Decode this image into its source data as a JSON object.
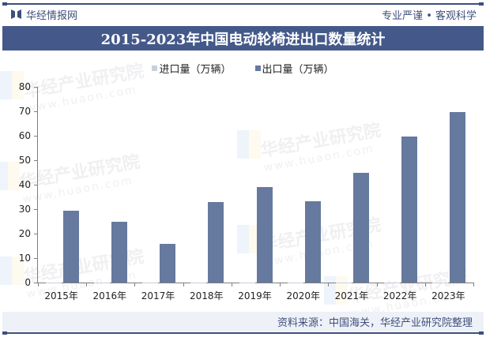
{
  "header": {
    "brand": "华经情报网",
    "slogan": "专业严谨 • 客观科学",
    "title": "2015-2023年中国电动轮椅进出口数量统计"
  },
  "legend": [
    {
      "label": "进口量（万辆）",
      "color": "#c9cfdd"
    },
    {
      "label": "出口量（万辆）",
      "color": "#66799e"
    }
  ],
  "footer": {
    "source": "资料来源：中国海关，华经产业研究院整理"
  },
  "watermark": {
    "text": "华经产业研究院",
    "url": "www.huaon.com"
  },
  "chart_data": {
    "type": "bar",
    "title": "2015-2023年中国电动轮椅进出口数量统计",
    "xlabel": "",
    "ylabel": "",
    "ylim": [
      0,
      80
    ],
    "yticks": [
      0,
      10,
      20,
      30,
      40,
      50,
      60,
      70,
      80
    ],
    "grid": false,
    "legend_position": "top",
    "categories": [
      "2015年",
      "2016年",
      "2017年",
      "2018年",
      "2019年",
      "2020年",
      "2021年",
      "2022年",
      "2023年"
    ],
    "series": [
      {
        "name": "进口量（万辆）",
        "color": "#c9cfdd",
        "values": [
          0.1,
          0.1,
          0.1,
          0.1,
          0.1,
          0.1,
          0.1,
          0.1,
          0.1
        ]
      },
      {
        "name": "出口量（万辆）",
        "color": "#66799e",
        "values": [
          29.3,
          24.8,
          15.8,
          32.9,
          39.0,
          33.2,
          44.8,
          59.7,
          69.7
        ]
      }
    ]
  }
}
